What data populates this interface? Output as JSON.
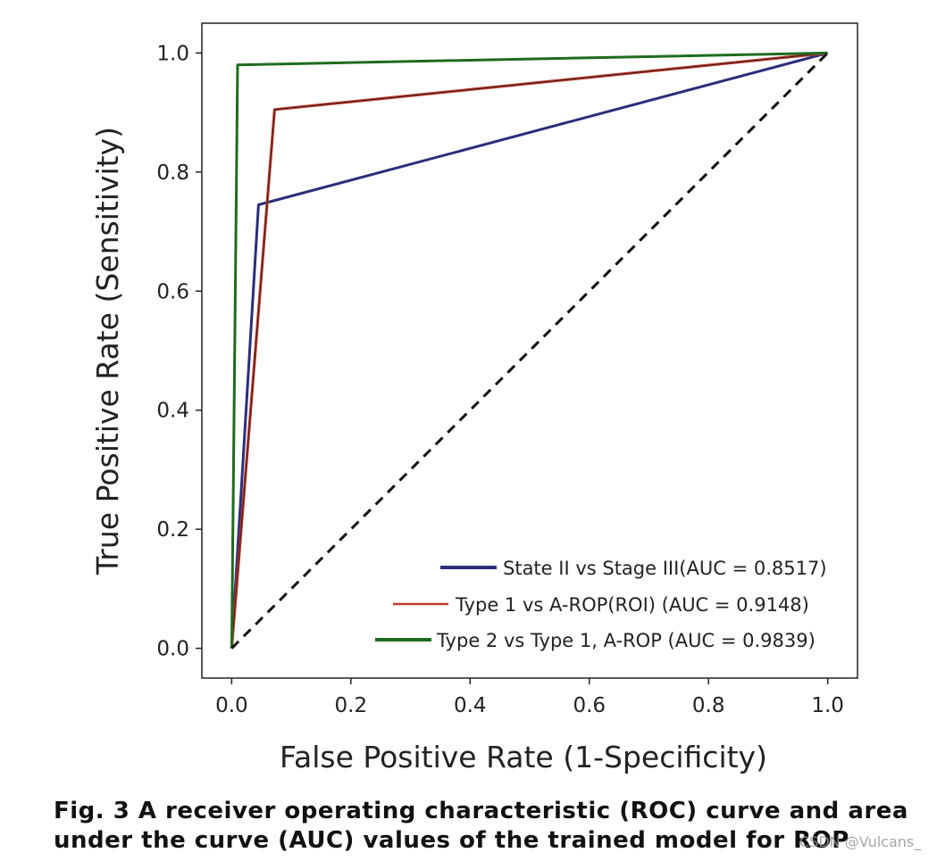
{
  "chart_data": {
    "type": "line",
    "title": "",
    "xlabel": "False Positive Rate (1-Specificity)",
    "ylabel": "True Positive Rate (Sensitivity)",
    "xlim": [
      -0.05,
      1.05
    ],
    "ylim": [
      -0.05,
      1.05
    ],
    "xticks": [
      0.0,
      0.2,
      0.4,
      0.6,
      0.8,
      1.0
    ],
    "yticks": [
      0.0,
      0.2,
      0.4,
      0.6,
      0.8,
      1.0
    ],
    "xtick_labels": [
      "0.0",
      "0.2",
      "0.4",
      "0.6",
      "0.8",
      "1.0"
    ],
    "ytick_labels": [
      "0.0",
      "0.2",
      "0.4",
      "0.6",
      "0.8",
      "1.0"
    ],
    "grid": false,
    "legend_position": "lower-right",
    "series": [
      {
        "name": "State II vs Stage III(AUC = 0.8517)",
        "color": "#2b2d7c",
        "x": [
          0.0,
          0.045,
          1.0
        ],
        "y": [
          0.0,
          0.745,
          1.0
        ]
      },
      {
        "name": "Type 1 vs A-ROP(ROI) (AUC = 0.9148)",
        "color": "#c0392b",
        "x": [
          0.0,
          0.072,
          1.0
        ],
        "y": [
          0.0,
          0.905,
          1.0
        ]
      },
      {
        "name": "Type 2 vs Type 1, A-ROP (AUC = 0.9839)",
        "color": "#1e6b1e",
        "x": [
          0.0,
          0.01,
          1.0
        ],
        "y": [
          0.0,
          0.98,
          1.0
        ]
      }
    ],
    "reference_line": {
      "x": [
        0.0,
        1.0
      ],
      "y": [
        0.0,
        1.0
      ],
      "color": "#111111",
      "style": "dashed"
    }
  },
  "caption": {
    "line1": "Fig. 3   A receiver operating characteristic (ROC) curve and area",
    "line2": "under the curve (AUC) values of the trained model for ROP"
  },
  "watermark": "CSDN @Vulcans_"
}
